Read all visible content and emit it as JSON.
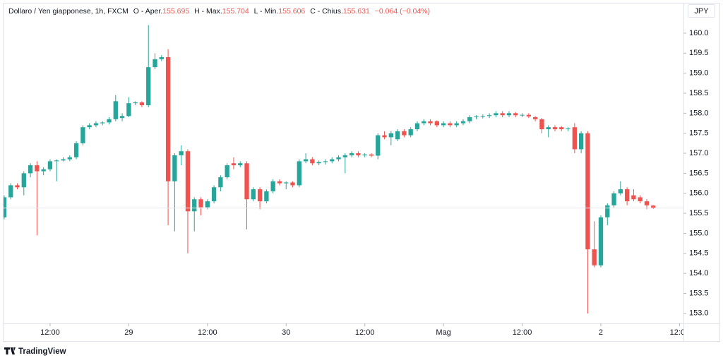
{
  "header": {
    "symbol": "Dollaro / Yen giapponese, 1h, FXCM",
    "open_label": "O - Aper.",
    "high_label": "H - Max.",
    "low_label": "L - Min.",
    "close_label": "C - Chius.",
    "change": "−0.064 (−0.04%)"
  },
  "currency": "JPY",
  "brand": "TradingView",
  "chart_data": {
    "type": "candlestick",
    "up_color": "#26a69a",
    "down_color": "#ef5350",
    "grid": false,
    "ylim": [
      152.75,
      160.74
    ],
    "yticks": [
      {
        "value": 153,
        "label": "153.0"
      },
      153.5,
      {
        "value": 154,
        "label": "154.0"
      },
      154.5,
      {
        "value": 155,
        "label": "155.0"
      },
      155.5,
      {
        "value": 156,
        "label": "156.0"
      },
      156.5,
      {
        "value": 157,
        "label": "157.0"
      },
      157.5,
      {
        "value": 158,
        "label": "158.0"
      },
      158.5,
      {
        "value": 159,
        "label": "159.0"
      },
      159.5,
      {
        "value": 160,
        "label": "160.0"
      }
    ],
    "xlim": [
      -0.1,
      103.6
    ],
    "xticks": [
      {
        "value": 7,
        "label": "12:00"
      },
      {
        "value": 19,
        "label": "29"
      },
      {
        "value": 31,
        "label": "12:00"
      },
      {
        "value": 43,
        "label": "30"
      },
      {
        "value": 55,
        "label": "12:00"
      },
      {
        "value": 67,
        "label": "Mag"
      },
      {
        "value": 79,
        "label": "12:00"
      },
      {
        "value": 91,
        "label": "2"
      },
      {
        "value": 103,
        "label": "12:00"
      }
    ],
    "ohlc": [
      [
        155.4,
        155.95,
        155.35,
        155.9
      ],
      [
        155.9,
        156.25,
        155.85,
        156.2
      ],
      [
        156.2,
        156.25,
        156.1,
        156.15
      ],
      [
        156.15,
        156.55,
        155.95,
        156.5
      ],
      [
        156.5,
        156.75,
        156.4,
        156.7
      ],
      [
        156.7,
        156.8,
        154.95,
        156.55
      ],
      [
        156.55,
        156.65,
        156.45,
        156.6
      ],
      [
        156.6,
        156.85,
        156.55,
        156.8
      ],
      [
        156.8,
        156.85,
        156.3,
        156.82
      ],
      [
        156.82,
        156.9,
        156.8,
        156.85
      ],
      [
        156.85,
        156.95,
        156.8,
        156.9
      ],
      [
        156.9,
        157.3,
        156.85,
        157.25
      ],
      [
        157.25,
        157.7,
        157.2,
        157.65
      ],
      [
        157.65,
        157.75,
        157.6,
        157.7
      ],
      [
        157.7,
        157.8,
        157.65,
        157.75
      ],
      [
        157.75,
        157.8,
        157.7,
        157.77
      ],
      [
        157.77,
        157.9,
        157.72,
        157.85
      ],
      [
        157.85,
        158.45,
        157.8,
        158.3
      ],
      [
        157.88,
        158.0,
        157.8,
        157.93
      ],
      [
        157.93,
        158.4,
        157.9,
        158.25
      ],
      [
        158.25,
        158.3,
        158.2,
        158.27
      ],
      [
        158.27,
        158.3,
        158.15,
        158.2
      ],
      [
        158.2,
        160.2,
        158.15,
        159.15
      ],
      [
        159.15,
        159.5,
        159.1,
        159.35
      ],
      [
        159.35,
        159.45,
        159.3,
        159.4
      ],
      [
        159.4,
        159.6,
        155.2,
        156.3
      ],
      [
        156.3,
        157.0,
        155.05,
        156.95
      ],
      [
        156.95,
        157.2,
        156.7,
        157.05
      ],
      [
        157.05,
        157.1,
        154.5,
        155.55
      ],
      [
        155.55,
        155.9,
        155.05,
        155.85
      ],
      [
        155.85,
        155.9,
        155.45,
        155.65
      ],
      [
        155.65,
        155.85,
        155.6,
        155.8
      ],
      [
        155.8,
        156.2,
        155.75,
        156.15
      ],
      [
        156.15,
        156.45,
        156.05,
        156.4
      ],
      [
        156.4,
        156.75,
        156.35,
        156.7
      ],
      [
        156.75,
        156.9,
        156.6,
        156.7
      ],
      [
        156.7,
        156.8,
        156.65,
        156.75
      ],
      [
        156.75,
        156.8,
        155.1,
        155.85
      ],
      [
        155.85,
        156.15,
        155.8,
        156.1
      ],
      [
        156.1,
        156.15,
        155.6,
        155.8
      ],
      [
        155.8,
        156.1,
        155.75,
        156.05
      ],
      [
        156.05,
        156.35,
        156.0,
        156.3
      ],
      [
        156.3,
        156.35,
        156.2,
        156.25
      ],
      [
        156.25,
        156.3,
        156.1,
        156.27
      ],
      [
        156.27,
        156.3,
        156.15,
        156.2
      ],
      [
        156.2,
        156.85,
        156.15,
        156.8
      ],
      [
        156.8,
        157.0,
        156.75,
        156.85
      ],
      [
        156.85,
        156.9,
        156.7,
        156.75
      ],
      [
        156.75,
        156.82,
        156.7,
        156.78
      ],
      [
        156.78,
        156.85,
        156.72,
        156.8
      ],
      [
        156.8,
        156.9,
        156.75,
        156.85
      ],
      [
        156.85,
        156.95,
        156.8,
        156.9
      ],
      [
        156.9,
        157.0,
        156.5,
        156.95
      ],
      [
        156.95,
        157.05,
        156.9,
        157.0
      ],
      [
        157.0,
        157.05,
        156.9,
        156.95
      ],
      [
        156.95,
        157.0,
        156.9,
        156.97
      ],
      [
        156.97,
        157.0,
        156.9,
        156.94
      ],
      [
        156.94,
        157.5,
        156.85,
        157.45
      ],
      [
        157.45,
        157.55,
        157.35,
        157.4
      ],
      [
        157.4,
        157.55,
        157.2,
        157.5
      ],
      [
        157.35,
        157.6,
        157.3,
        157.55
      ],
      [
        157.55,
        157.6,
        157.4,
        157.45
      ],
      [
        157.45,
        157.65,
        157.4,
        157.6
      ],
      [
        157.6,
        157.8,
        157.55,
        157.75
      ],
      [
        157.75,
        157.85,
        157.7,
        157.8
      ],
      [
        157.8,
        157.85,
        157.7,
        157.75
      ],
      [
        157.8,
        157.82,
        157.65,
        157.7
      ],
      [
        157.7,
        157.8,
        157.65,
        157.75
      ],
      [
        157.75,
        157.8,
        157.65,
        157.7
      ],
      [
        157.7,
        157.8,
        157.65,
        157.75
      ],
      [
        157.75,
        157.85,
        157.7,
        157.8
      ],
      [
        157.8,
        157.95,
        157.75,
        157.9
      ],
      [
        157.9,
        157.95,
        157.85,
        157.92
      ],
      [
        157.92,
        157.97,
        157.87,
        157.93
      ],
      [
        157.93,
        158.0,
        157.88,
        157.95
      ],
      [
        157.95,
        158.05,
        157.9,
        158.0
      ],
      [
        158.0,
        158.05,
        157.9,
        157.95
      ],
      [
        157.95,
        158.05,
        157.9,
        158.0
      ],
      [
        158.0,
        158.03,
        157.9,
        157.95
      ],
      [
        157.95,
        158.0,
        157.9,
        157.96
      ],
      [
        157.96,
        158.0,
        157.88,
        157.92
      ],
      [
        157.9,
        157.93,
        157.8,
        157.85
      ],
      [
        157.85,
        157.88,
        157.5,
        157.6
      ],
      [
        157.6,
        157.7,
        157.4,
        157.65
      ],
      [
        157.65,
        157.7,
        157.55,
        157.6
      ],
      [
        157.65,
        157.68,
        157.55,
        157.6
      ],
      [
        157.6,
        157.65,
        157.55,
        157.62
      ],
      [
        157.65,
        157.75,
        157.0,
        157.1
      ],
      [
        157.1,
        157.55,
        157.0,
        157.5
      ],
      [
        157.5,
        157.55,
        153.0,
        154.6
      ],
      [
        154.6,
        155.3,
        154.15,
        154.2
      ],
      [
        154.2,
        155.45,
        154.15,
        155.4
      ],
      [
        155.4,
        155.75,
        155.2,
        155.7
      ],
      [
        155.7,
        156.05,
        155.65,
        156.0
      ],
      [
        156.0,
        156.3,
        155.95,
        156.1
      ],
      [
        156.1,
        156.15,
        155.7,
        155.8
      ],
      [
        155.95,
        156.1,
        155.8,
        155.85
      ],
      [
        155.9,
        155.95,
        155.75,
        155.8
      ],
      [
        155.8,
        155.85,
        155.6,
        155.7
      ],
      [
        155.695,
        155.704,
        155.606,
        155.631
      ]
    ]
  }
}
